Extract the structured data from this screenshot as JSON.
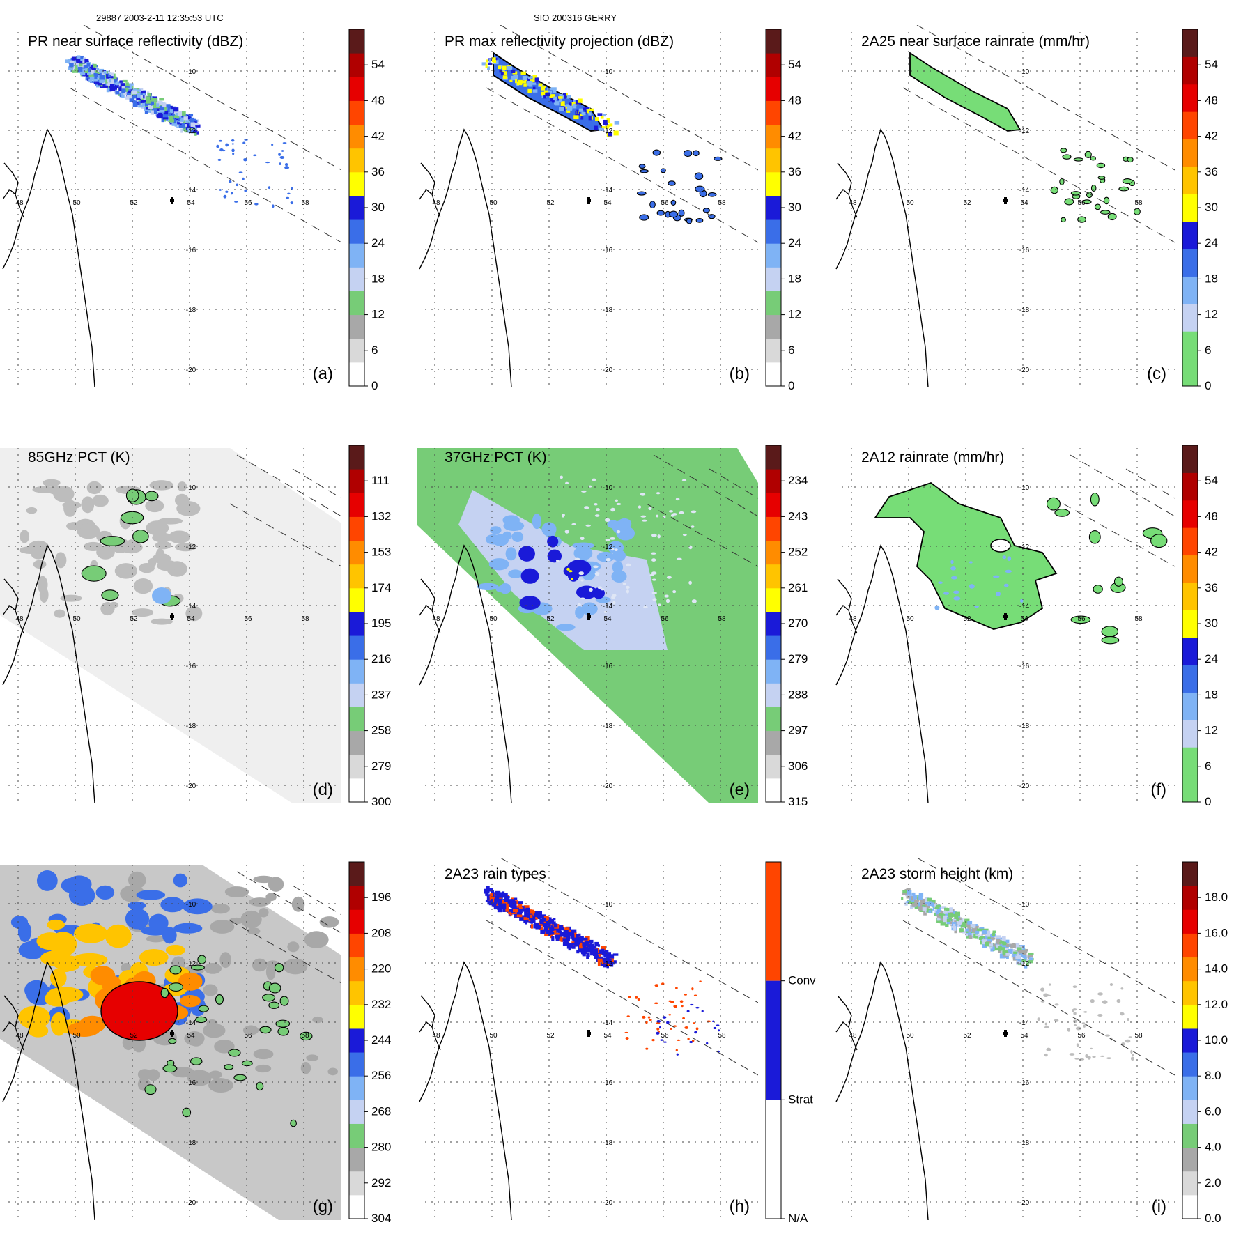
{
  "header": {
    "left": "29887 2003-2-11 12:35:53 UTC",
    "center": "SIO 200316 GERRY"
  },
  "common": {
    "lon_ticks": [
      "48",
      "50",
      "52",
      "54",
      "56",
      "58"
    ],
    "lat_ticks": [
      "-10",
      "-12",
      "-14",
      "-16",
      "-18",
      "-20"
    ],
    "center_marker": "storm-center-cross"
  },
  "chart_data": [
    {
      "type": "heatmap",
      "id": "a",
      "title": "PR near surface reflectivity (dBZ)",
      "panel_label": "(a)",
      "colorbar_ticks": [
        "0",
        "6",
        "12",
        "18",
        "24",
        "30",
        "36",
        "42",
        "48",
        "54"
      ],
      "colorbar_colors": [
        "#ffffff",
        "#d9d9d9",
        "#a8a8a8",
        "#77cc77",
        "#c5d2f2",
        "#7fb3f5",
        "#3a6ee8",
        "#1a1ad8",
        "#ffff00",
        "#ffc400",
        "#ff8c00",
        "#ff4500",
        "#e60000",
        "#b00000",
        "#5a1a1a"
      ],
      "swath": "pr",
      "field": "pr"
    },
    {
      "type": "heatmap",
      "id": "b",
      "title": "PR max reflectivity projection (dBZ)",
      "panel_label": "(b)",
      "colorbar_ticks": [
        "0",
        "6",
        "12",
        "18",
        "24",
        "30",
        "36",
        "42",
        "48",
        "54"
      ],
      "colorbar_colors": [
        "#ffffff",
        "#d9d9d9",
        "#a8a8a8",
        "#77cc77",
        "#c5d2f2",
        "#7fb3f5",
        "#3a6ee8",
        "#1a1ad8",
        "#ffff00",
        "#ffc400",
        "#ff8c00",
        "#ff4500",
        "#e60000",
        "#b00000",
        "#5a1a1a"
      ],
      "swath": "pr",
      "field": "prmax"
    },
    {
      "type": "heatmap",
      "id": "c",
      "title": "2A25 near surface rainrate (mm/hr)",
      "panel_label": "(c)",
      "colorbar_ticks": [
        "0",
        "6",
        "12",
        "18",
        "24",
        "30",
        "36",
        "42",
        "48",
        "54"
      ],
      "colorbar_colors": [
        "#77dd77",
        "#77dd77",
        "#c5d2f2",
        "#7fb3f5",
        "#3a6ee8",
        "#1a1ad8",
        "#ffff00",
        "#ffc400",
        "#ff8c00",
        "#ff4500",
        "#e60000",
        "#b00000",
        "#5a1a1a"
      ],
      "swath": "pr",
      "field": "rain"
    },
    {
      "type": "heatmap",
      "id": "d",
      "title": "85GHz PCT (K)",
      "panel_label": "(d)",
      "colorbar_ticks": [
        "300",
        "279",
        "258",
        "237",
        "216",
        "195",
        "174",
        "153",
        "132",
        "111"
      ],
      "colorbar_colors": [
        "#ffffff",
        "#d9d9d9",
        "#a8a8a8",
        "#77cc77",
        "#c5d2f2",
        "#7fb3f5",
        "#3a6ee8",
        "#1a1ad8",
        "#ffff00",
        "#ffc400",
        "#ff8c00",
        "#ff4500",
        "#e60000",
        "#b00000",
        "#5a1a1a"
      ],
      "swath": "tmi",
      "field": "pct85"
    },
    {
      "type": "heatmap",
      "id": "e",
      "title": "37GHz PCT (K)",
      "panel_label": "(e)",
      "colorbar_ticks": [
        "315",
        "306",
        "297",
        "288",
        "279",
        "270",
        "261",
        "252",
        "243",
        "234"
      ],
      "colorbar_colors": [
        "#ffffff",
        "#d9d9d9",
        "#a8a8a8",
        "#77cc77",
        "#c5d2f2",
        "#7fb3f5",
        "#3a6ee8",
        "#1a1ad8",
        "#ffff00",
        "#ffc400",
        "#ff8c00",
        "#ff4500",
        "#e60000",
        "#b00000",
        "#5a1a1a"
      ],
      "swath": "tmi",
      "field": "pct37"
    },
    {
      "type": "heatmap",
      "id": "f",
      "title": "2A12 rainrate (mm/hr)",
      "panel_label": "(f)",
      "colorbar_ticks": [
        "0",
        "6",
        "12",
        "18",
        "24",
        "30",
        "36",
        "42",
        "48",
        "54"
      ],
      "colorbar_colors": [
        "#77dd77",
        "#77dd77",
        "#c5d2f2",
        "#7fb3f5",
        "#3a6ee8",
        "#1a1ad8",
        "#ffff00",
        "#ffc400",
        "#ff8c00",
        "#ff4500",
        "#e60000",
        "#b00000",
        "#5a1a1a"
      ],
      "swath": "none",
      "field": "rain12"
    },
    {
      "type": "heatmap",
      "id": "g",
      "title": "",
      "panel_label": "(g)",
      "colorbar_ticks": [
        "304",
        "292",
        "280",
        "268",
        "256",
        "244",
        "232",
        "220",
        "208",
        "196"
      ],
      "colorbar_colors": [
        "#ffffff",
        "#d9d9d9",
        "#a8a8a8",
        "#77cc77",
        "#c5d2f2",
        "#7fb3f5",
        "#3a6ee8",
        "#1a1ad8",
        "#ffff00",
        "#ffc400",
        "#ff8c00",
        "#ff4500",
        "#e60000",
        "#b00000",
        "#5a1a1a"
      ],
      "swath": "vis",
      "field": "ir"
    },
    {
      "type": "heatmap",
      "id": "h",
      "title": "2A23 rain types",
      "panel_label": "(h)",
      "colorbar_ticks": [
        "N/A",
        "Strat",
        "Conv"
      ],
      "colorbar_colors": [
        "#ffffff",
        "#1a1ad8",
        "#ff4500"
      ],
      "categorical": true,
      "swath": "pr",
      "field": "types"
    },
    {
      "type": "heatmap",
      "id": "i",
      "title": "2A23 storm height (km)",
      "panel_label": "(i)",
      "colorbar_ticks": [
        "0.0",
        "2.0",
        "4.0",
        "6.0",
        "8.0",
        "10.0",
        "12.0",
        "14.0",
        "16.0",
        "18.0"
      ],
      "colorbar_colors": [
        "#ffffff",
        "#d9d9d9",
        "#a8a8a8",
        "#77cc77",
        "#c5d2f2",
        "#7fb3f5",
        "#3a6ee8",
        "#1a1ad8",
        "#ffff00",
        "#ffc400",
        "#ff8c00",
        "#ff4500",
        "#e60000",
        "#b00000",
        "#5a1a1a"
      ],
      "swath": "pr",
      "field": "height"
    }
  ]
}
